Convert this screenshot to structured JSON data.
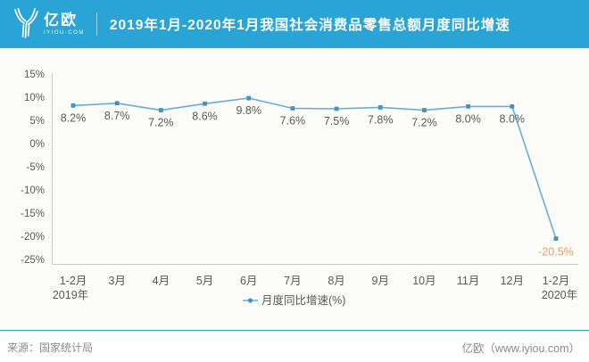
{
  "header": {
    "logo_text": "亿欧",
    "logo_sub": "IYIOU·COM",
    "title": "2019年1月-2020年1月我国社会消费品零售总额月度同比增速"
  },
  "chart_data": {
    "type": "line",
    "title": "2019年1月-2020年1月我国社会消费品零售总额月度同比增速",
    "categories": [
      "1-2月",
      "3月",
      "4月",
      "5月",
      "6月",
      "7月",
      "8月",
      "9月",
      "10月",
      "11月",
      "12月",
      "1-2月"
    ],
    "series": [
      {
        "name": "月度同比增速(%)",
        "values": [
          8.2,
          8.7,
          7.2,
          8.6,
          9.8,
          7.6,
          7.5,
          7.8,
          7.2,
          8.0,
          8.0,
          -20.5
        ]
      }
    ],
    "value_labels": [
      "8.2%",
      "8.7%",
      "7.2%",
      "8.6%",
      "9.8%",
      "7.6%",
      "7.5%",
      "7.8%",
      "7.2%",
      "8.0%",
      "8.0%",
      "-20.5%"
    ],
    "y_ticks": [
      "15%",
      "10%",
      "5%",
      "0%",
      "-5%",
      "-10%",
      "-15%",
      "-20%",
      "-25%"
    ],
    "y_tick_values": [
      15,
      10,
      5,
      0,
      -5,
      -10,
      -15,
      -20,
      -25
    ],
    "ylim": [
      -25,
      15
    ],
    "x_group_labels": [
      {
        "text": "2019年",
        "index": 0
      },
      {
        "text": "2020年",
        "index": 11
      }
    ],
    "legend": {
      "label": "月度同比增速(%)",
      "position": "bottom-center"
    },
    "grid": false,
    "colors": {
      "line": "#66AED4",
      "marker": "#4292C4",
      "label": "#595959",
      "negative_label": "#ED9C5C",
      "axis": "#C9C9C9",
      "tick_text": "#595959"
    }
  },
  "footer": {
    "source": "来源：国家统计局",
    "brand": "亿欧（www.iyiou.com）"
  },
  "colors": {
    "banner": "#2AA4D4",
    "footer_divider": "#35A2B2"
  }
}
